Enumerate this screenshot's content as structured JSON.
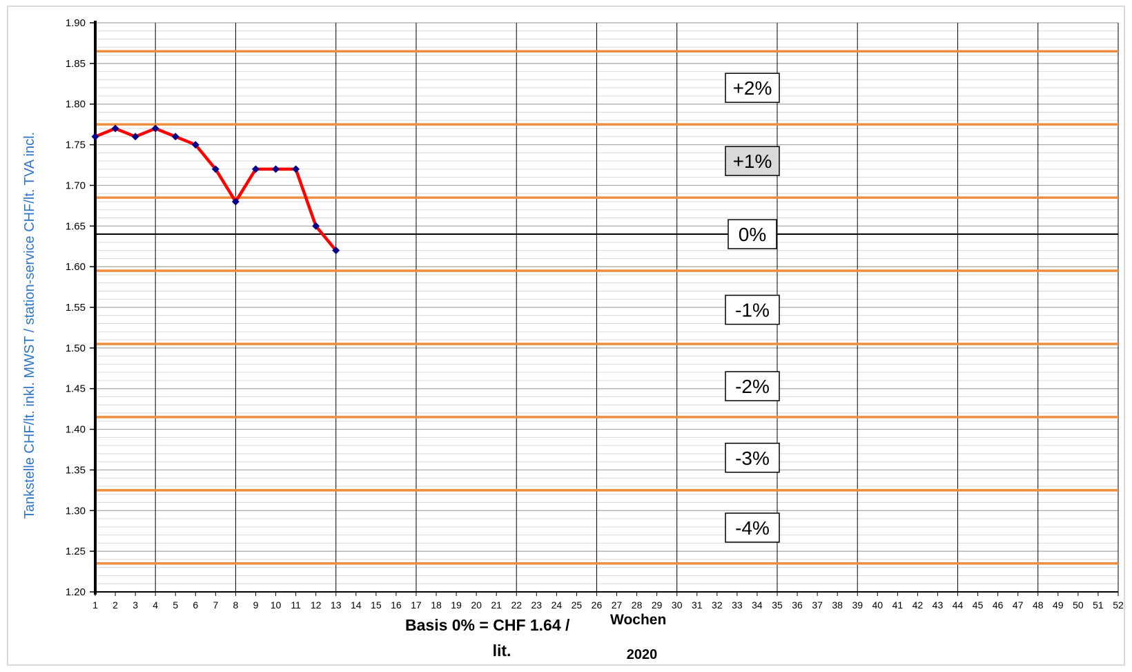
{
  "chart_data": {
    "type": "line",
    "ylabel": "Tankstelle CHF/lt. inkl. MWST  /  station-service CHF/lt. TVA incl.",
    "xlabel": "Wochen",
    "year_label": "2020",
    "basis_line1": "Basis 0% = CHF 1.64 /",
    "basis_line2": "lit.",
    "ylim": [
      1.2,
      1.9
    ],
    "y_ticks": [
      "1.20",
      "1.25",
      "1.30",
      "1.35",
      "1.40",
      "1.45",
      "1.50",
      "1.55",
      "1.60",
      "1.65",
      "1.70",
      "1.75",
      "1.80",
      "1.85",
      "1.90"
    ],
    "x_ticks": [
      "1",
      "2",
      "3",
      "4",
      "5",
      "6",
      "7",
      "8",
      "9",
      "10",
      "11",
      "12",
      "13",
      "14",
      "15",
      "16",
      "17",
      "18",
      "19",
      "20",
      "21",
      "22",
      "23",
      "24",
      "25",
      "26",
      "27",
      "28",
      "29",
      "30",
      "31",
      "32",
      "33",
      "34",
      "35",
      "36",
      "37",
      "38",
      "39",
      "40",
      "41",
      "42",
      "43",
      "44",
      "45",
      "46",
      "47",
      "48",
      "49",
      "50",
      "51",
      "52"
    ],
    "series": [
      {
        "x": [
          1,
          2,
          3,
          4,
          5,
          6,
          7,
          8,
          9,
          10,
          11,
          12,
          13
        ],
        "values": [
          1.76,
          1.77,
          1.76,
          1.77,
          1.76,
          1.75,
          1.72,
          1.68,
          1.72,
          1.72,
          1.72,
          1.65,
          1.62
        ],
        "line_color": "#ff0000",
        "marker_color": "#00008b"
      }
    ],
    "baseline": {
      "value": 1.64,
      "label": "0%",
      "color": "#000000"
    },
    "reference_lines": [
      {
        "value": 1.865,
        "color": "#f08c3c"
      },
      {
        "value": 1.775,
        "color": "#f08c3c"
      },
      {
        "value": 1.685,
        "color": "#f08c3c"
      },
      {
        "value": 1.595,
        "color": "#f08c3c"
      },
      {
        "value": 1.505,
        "color": "#f08c3c"
      },
      {
        "value": 1.415,
        "color": "#f08c3c"
      },
      {
        "value": 1.325,
        "color": "#f08c3c"
      },
      {
        "value": 1.235,
        "color": "#f08c3c"
      }
    ],
    "band_labels": [
      {
        "label": "+2%",
        "value": 1.82,
        "highlight": false
      },
      {
        "label": "+1%",
        "value": 1.73,
        "highlight": true
      },
      {
        "label": "0%",
        "value": 1.64,
        "highlight": false
      },
      {
        "label": "-1%",
        "value": 1.547,
        "highlight": false
      },
      {
        "label": "-2%",
        "value": 1.453,
        "highlight": false
      },
      {
        "label": "-3%",
        "value": 1.365,
        "highlight": false
      },
      {
        "label": "-4%",
        "value": 1.279,
        "highlight": false
      }
    ],
    "vertical_grid_weeks": [
      1,
      4,
      8,
      13,
      17,
      22,
      26,
      30,
      35,
      39,
      44,
      48,
      52
    ],
    "grid": true
  }
}
